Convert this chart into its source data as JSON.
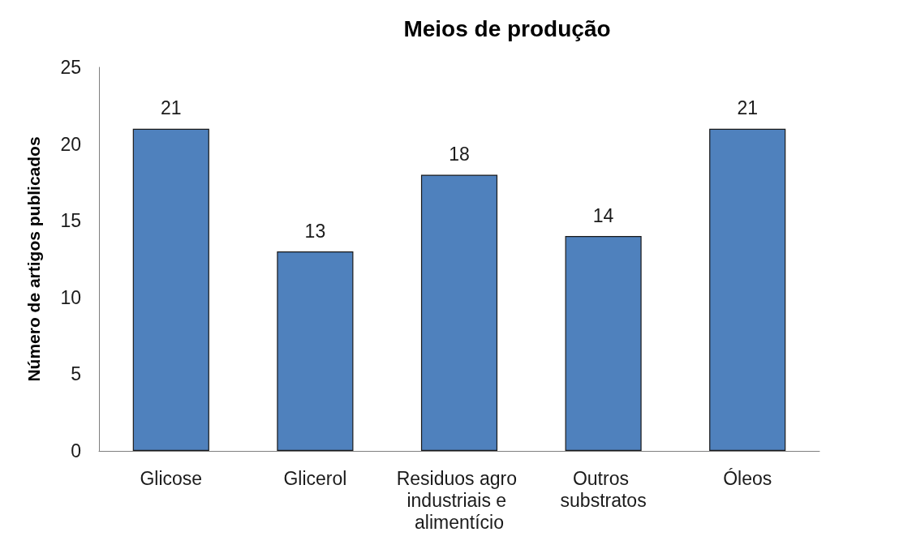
{
  "chart_data": {
    "type": "bar",
    "title": "Meios de produção",
    "ylabel": "Número de artigos publicados",
    "categories": [
      "Glicose",
      "Glicerol",
      "Residuos agro industriais e alimentício",
      "Outros substratos",
      "Óleos"
    ],
    "values": [
      21,
      13,
      18,
      14,
      21
    ],
    "color": "#4f81bd",
    "ylim": [
      0,
      25
    ],
    "yticks": [
      0,
      5,
      10,
      15,
      20,
      25
    ],
    "grid": false,
    "data_labels": true
  }
}
